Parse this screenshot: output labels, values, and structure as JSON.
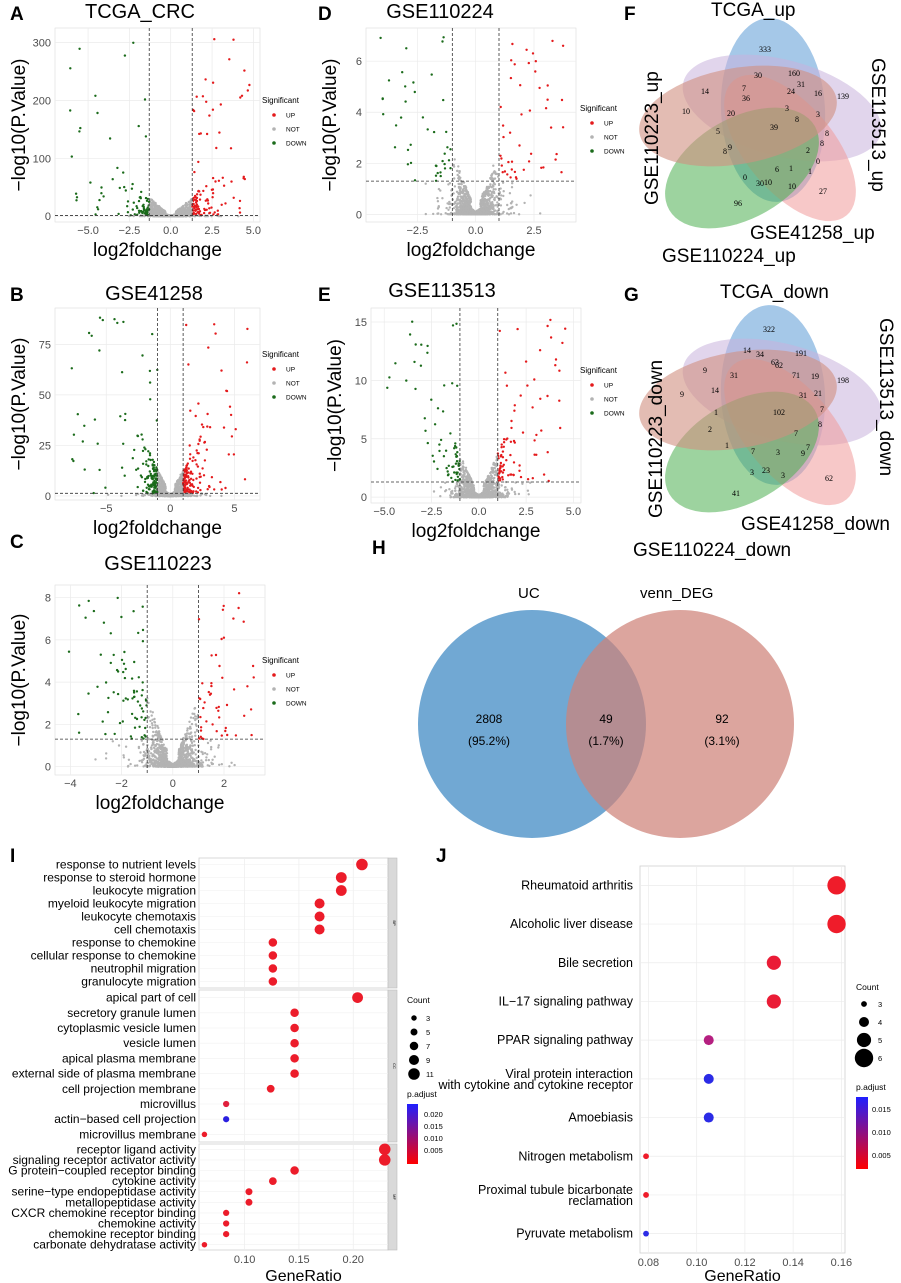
{
  "chart_data": [
    {
      "id": "A",
      "type": "scatter",
      "title": "TCGA_CRC",
      "xlabel": "log2foldchange",
      "ylabel": "−log10(P.Value)",
      "xlim": [
        -7,
        5.4
      ],
      "ylim": [
        -10,
        325
      ],
      "xticks": [
        -5.0,
        -2.5,
        0.0,
        2.5,
        5.0
      ],
      "xtick_labels": [
        "−5.0",
        "−2.5",
        "0.0",
        "2.5",
        "5.0"
      ],
      "yticks": [
        0,
        100,
        200,
        300
      ],
      "ytick_labels": [
        "0",
        "100",
        "200",
        "300"
      ],
      "vlines": [
        -1.3,
        1.3
      ],
      "hline": 1.3,
      "spread": 1.25,
      "ymaxdense": 80,
      "legend": {
        "title": "Significant",
        "items": [
          {
            "label": "UP",
            "color": "#e41a1c"
          },
          {
            "label": "NOT",
            "color": "#b3b3b3"
          },
          {
            "label": "DOWN",
            "color": "#1b6b1b"
          }
        ]
      }
    },
    {
      "id": "B",
      "type": "scatter",
      "title": "GSE41258",
      "xlabel": "log2foldchange",
      "ylabel": "−log10(P.Value)",
      "xlim": [
        -9,
        7
      ],
      "ylim": [
        -2,
        93
      ],
      "xticks": [
        -5,
        0,
        5
      ],
      "xtick_labels": [
        "−5",
        "0",
        "5"
      ],
      "yticks": [
        0,
        25,
        50,
        75
      ],
      "ytick_labels": [
        "0",
        "25",
        "50",
        "75"
      ],
      "vlines": [
        -1,
        1
      ],
      "hline": 1.3,
      "spread": 1.4,
      "ymaxdense": 55,
      "legend": {
        "title": "Significant",
        "items": [
          {
            "label": "UP",
            "color": "#e41a1c"
          },
          {
            "label": "NOT",
            "color": "#b3b3b3"
          },
          {
            "label": "DOWN",
            "color": "#1b6b1b"
          }
        ]
      }
    },
    {
      "id": "C",
      "type": "scatter",
      "title": "GSE110223",
      "xlabel": "log2foldchange",
      "ylabel": "−log10(P.Value)",
      "xlim": [
        -4.6,
        3.6
      ],
      "ylim": [
        -0.4,
        8.6
      ],
      "xticks": [
        -4,
        -2,
        0,
        2
      ],
      "xtick_labels": [
        "−4",
        "−2",
        "0",
        "2"
      ],
      "yticks": [
        0,
        2,
        4,
        6,
        8
      ],
      "ytick_labels": [
        "0",
        "2",
        "4",
        "6",
        "8"
      ],
      "vlines": [
        -1,
        1
      ],
      "hline": 1.3,
      "spread": 0.9,
      "ymaxdense": 7,
      "legend": {
        "title": "Significant",
        "items": [
          {
            "label": "UP",
            "color": "#e41a1c"
          },
          {
            "label": "NOT",
            "color": "#b3b3b3"
          },
          {
            "label": "DOWN",
            "color": "#1b6b1b"
          }
        ]
      }
    },
    {
      "id": "D",
      "type": "scatter",
      "title": "GSE110224",
      "xlabel": "log2foldchange",
      "ylabel": "−log10(P.Value)",
      "xlim": [
        -4.7,
        4.3
      ],
      "ylim": [
        -0.3,
        7.3
      ],
      "xticks": [
        -2.5,
        0.0,
        2.5
      ],
      "xtick_labels": [
        "−2.5",
        "0.0",
        "2.5"
      ],
      "yticks": [
        0,
        2,
        4,
        6
      ],
      "ytick_labels": [
        "0",
        "2",
        "4",
        "6"
      ],
      "vlines": [
        -1,
        1
      ],
      "hline": 1.3,
      "spread": 0.8,
      "ymaxdense": 6.5,
      "legend": {
        "title": "Significant",
        "items": [
          {
            "label": "UP",
            "color": "#e41a1c"
          },
          {
            "label": "NOT",
            "color": "#b3b3b3"
          },
          {
            "label": "DOWN",
            "color": "#1b6b1b"
          }
        ]
      }
    },
    {
      "id": "E",
      "type": "scatter",
      "title": "GSE113513",
      "xlabel": "log2foldchange",
      "ylabel": "−log10(P.Value)",
      "xlim": [
        -5.7,
        5.4
      ],
      "ylim": [
        -0.5,
        16.2
      ],
      "xticks": [
        -5.0,
        -2.5,
        0.0,
        2.5,
        5.0
      ],
      "xtick_labels": [
        "−5.0",
        "−2.5",
        "0.0",
        "2.5",
        "5.0"
      ],
      "yticks": [
        0,
        5,
        10,
        15
      ],
      "ytick_labels": [
        "0",
        "5",
        "10",
        "15"
      ],
      "vlines": [
        -1,
        1
      ],
      "hline": 1.3,
      "spread": 1.0,
      "ymaxdense": 12,
      "legend": {
        "title": "Significant",
        "items": [
          {
            "label": "UP",
            "color": "#e41a1c"
          },
          {
            "label": "NOT",
            "color": "#b3b3b3"
          },
          {
            "label": "DOWN",
            "color": "#1b6b1b"
          }
        ]
      }
    },
    {
      "id": "F",
      "type": "venn5",
      "title": "TCGA_up",
      "sets": [
        "TCGA_up",
        "GSE113513_up",
        "GSE41258_up",
        "GSE110224_up",
        "GSE110223_up"
      ],
      "numbers": [
        "333",
        "139",
        "27",
        "96",
        "10",
        "30",
        "160",
        "31",
        "16",
        "3",
        "8",
        "8",
        "0",
        "1",
        "10",
        "30",
        "0",
        "5",
        "14",
        "7",
        "36",
        "24",
        "3",
        "8",
        "2",
        "1",
        "6",
        "10",
        "8",
        "9",
        "20",
        "39"
      ]
    },
    {
      "id": "G",
      "type": "venn5",
      "title": "TCGA_down",
      "sets": [
        "TCGA_down",
        "GSE113513_down",
        "GSE41258_down",
        "GSE110224_down",
        "GSE110223_down"
      ],
      "numbers": [
        "322",
        "198",
        "62",
        "41",
        "9",
        "34",
        "191",
        "63",
        "19",
        "21",
        "7",
        "8",
        "7",
        "3",
        "23",
        "3",
        "1",
        "9",
        "14",
        "62",
        "71",
        "31",
        "7",
        "9",
        "3",
        "7",
        "1",
        "2",
        "14",
        "31",
        "102"
      ]
    },
    {
      "id": "H",
      "type": "venn2",
      "sets": [
        {
          "name": "UC",
          "count": "2808",
          "pct": "(95.2%)",
          "color": "#3a86c2"
        },
        {
          "name": "venn_DEG",
          "count": "92",
          "pct": "(3.1%)",
          "color": "#cf8279"
        }
      ],
      "overlap": {
        "count": "49",
        "pct": "(1.7%)"
      }
    },
    {
      "id": "I",
      "type": "dotplot",
      "xlabel": "GeneRatio",
      "xlim": [
        0.058,
        0.232
      ],
      "xticks": [
        0.1,
        0.15,
        0.2
      ],
      "xtick_labels": [
        "0.10",
        "0.15",
        "0.20"
      ],
      "facets": [
        "BP",
        "CC",
        "MF"
      ],
      "terms": [
        {
          "label": "response to nutrient levels",
          "x": 0.208,
          "count": 11,
          "color": "#ec1c2a",
          "facet": 0
        },
        {
          "label": "response to steroid hormone",
          "x": 0.189,
          "count": 10,
          "color": "#ec1c2a",
          "facet": 0
        },
        {
          "label": "leukocyte migration",
          "x": 0.189,
          "count": 10,
          "color": "#ec1c2a",
          "facet": 0
        },
        {
          "label": "myeloid leukocyte migration",
          "x": 0.169,
          "count": 9,
          "color": "#ec1c2a",
          "facet": 0
        },
        {
          "label": "leukocyte chemotaxis",
          "x": 0.169,
          "count": 9,
          "color": "#ec1c2a",
          "facet": 0
        },
        {
          "label": "cell chemotaxis",
          "x": 0.169,
          "count": 9,
          "color": "#ec1c2a",
          "facet": 0
        },
        {
          "label": "response to chemokine",
          "x": 0.126,
          "count": 7,
          "color": "#ec1c2a",
          "facet": 0
        },
        {
          "label": "cellular response to chemokine",
          "x": 0.126,
          "count": 7,
          "color": "#ec1c2a",
          "facet": 0
        },
        {
          "label": "neutrophil migration",
          "x": 0.126,
          "count": 7,
          "color": "#ec1c2a",
          "facet": 0
        },
        {
          "label": "granulocyte migration",
          "x": 0.126,
          "count": 7,
          "color": "#ec1c2a",
          "facet": 0
        },
        {
          "label": "apical part of cell",
          "x": 0.204,
          "count": 10,
          "color": "#ec1c2a",
          "facet": 1
        },
        {
          "label": "secretory granule lumen",
          "x": 0.146,
          "count": 7,
          "color": "#ec1c2a",
          "facet": 1
        },
        {
          "label": "cytoplasmic vesicle lumen",
          "x": 0.146,
          "count": 7,
          "color": "#ec1c2a",
          "facet": 1
        },
        {
          "label": "vesicle lumen",
          "x": 0.146,
          "count": 7,
          "color": "#ec1c2a",
          "facet": 1
        },
        {
          "label": "apical plasma membrane",
          "x": 0.146,
          "count": 7,
          "color": "#ec1c2a",
          "facet": 1
        },
        {
          "label": "external side of plasma membrane",
          "x": 0.146,
          "count": 7,
          "color": "#ec1c2a",
          "facet": 1
        },
        {
          "label": "cell projection membrane",
          "x": 0.124,
          "count": 6,
          "color": "#ec1c2a",
          "facet": 1
        },
        {
          "label": "microvillus",
          "x": 0.083,
          "count": 4,
          "color": "#e01f3c",
          "facet": 1
        },
        {
          "label": "actin−based cell projection",
          "x": 0.083,
          "count": 4,
          "color": "#2a1fe0",
          "facet": 1
        },
        {
          "label": "microvillus membrane",
          "x": 0.063,
          "count": 3,
          "color": "#ec1c2a",
          "facet": 1
        },
        {
          "label": "receptor ligand activity",
          "x": 0.229,
          "count": 11,
          "color": "#ec1c2a",
          "facet": 2
        },
        {
          "label": "signaling receptor activator activity",
          "x": 0.229,
          "count": 11,
          "color": "#ec1c2a",
          "facet": 2
        },
        {
          "label": "G protein−coupled receptor binding",
          "x": 0.146,
          "count": 7,
          "color": "#ec1c2a",
          "facet": 2
        },
        {
          "label": "cytokine activity",
          "x": 0.126,
          "count": 6,
          "color": "#ec1c2a",
          "facet": 2
        },
        {
          "label": "serine−type endopeptidase activity",
          "x": 0.104,
          "count": 5,
          "color": "#ec1c2a",
          "facet": 2
        },
        {
          "label": "metallopeptidase activity",
          "x": 0.104,
          "count": 5,
          "color": "#ec1c2a",
          "facet": 2
        },
        {
          "label": "CXCR chemokine receptor binding",
          "x": 0.083,
          "count": 4,
          "color": "#ec1c2a",
          "facet": 2
        },
        {
          "label": "chemokine activity",
          "x": 0.083,
          "count": 4,
          "color": "#ec1c2a",
          "facet": 2
        },
        {
          "label": "chemokine receptor binding",
          "x": 0.083,
          "count": 4,
          "color": "#ec1c2a",
          "facet": 2
        },
        {
          "label": "carbonate dehydratase activity",
          "x": 0.063,
          "count": 3,
          "color": "#ec1c2a",
          "facet": 2
        }
      ],
      "size_legend": {
        "title": "Count",
        "items": [
          3,
          5,
          7,
          9,
          11
        ]
      },
      "color_legend": {
        "title": "p.adjust",
        "ticks": [
          "0.020",
          "0.015",
          "0.010",
          "0.005"
        ]
      }
    },
    {
      "id": "J",
      "type": "dotplot",
      "xlabel": "GeneRatio",
      "xlim": [
        0.0765,
        0.1615
      ],
      "xticks": [
        0.08,
        0.1,
        0.12,
        0.14,
        0.16
      ],
      "xtick_labels": [
        "0.08",
        "0.10",
        "0.12",
        "0.14",
        "0.16"
      ],
      "terms": [
        {
          "label": "Rheumatoid arthritis",
          "x": 0.158,
          "count": 6,
          "color": "#ef1c2a"
        },
        {
          "label": "Alcoholic liver disease",
          "x": 0.158,
          "count": 6,
          "color": "#ef1c2a"
        },
        {
          "label": "Bile secretion",
          "x": 0.132,
          "count": 5,
          "color": "#ea1c36"
        },
        {
          "label": "IL−17 signaling pathway",
          "x": 0.132,
          "count": 5,
          "color": "#ea1c36"
        },
        {
          "label": "PPAR signaling pathway",
          "x": 0.105,
          "count": 4,
          "color": "#b51f80"
        },
        {
          "label": "Viral protein interaction with cytokine and cytokine receptor",
          "x": 0.105,
          "count": 4,
          "color": "#2b2be6"
        },
        {
          "label": "Amoebiasis",
          "x": 0.105,
          "count": 4,
          "color": "#2b2be6"
        },
        {
          "label": "Nitrogen metabolism",
          "x": 0.079,
          "count": 3,
          "color": "#ef1c2a"
        },
        {
          "label": "Proximal tubule bicarbonate reclamation",
          "x": 0.079,
          "count": 3,
          "color": "#ef1c2a"
        },
        {
          "label": "Pyruvate metabolism",
          "x": 0.079,
          "count": 3,
          "color": "#2b2be6"
        }
      ],
      "size_legend": {
        "title": "Count",
        "items": [
          3,
          4,
          5,
          6
        ]
      },
      "color_legend": {
        "title": "p.adjust",
        "ticks": [
          "0.015",
          "0.010",
          "0.005"
        ]
      }
    }
  ]
}
